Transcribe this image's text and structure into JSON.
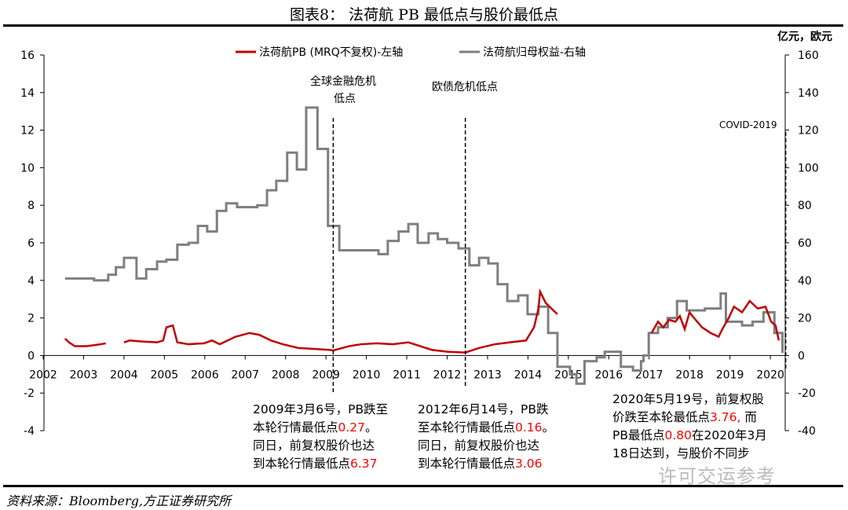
{
  "title": "图表8：  法荷航 PB 最低点与股价最低点",
  "source": "资料来源：Bloomberg,方正证券研究所",
  "right_unit": "亿元，欧元",
  "watermark": "许可交运参考",
  "notes": {
    "n2009": {
      "l1": "2009年3月6号，PB跌至",
      "l2a": "本轮行情最低点",
      "l2b": "0.27",
      "l2c": "。",
      "l3": "同日，前复权股价也达",
      "l4a": "到本轮行情最低点",
      "l4b": "6.37"
    },
    "n2012": {
      "l1": "2012年6月14号，PB跌",
      "l2a": "至本轮行情最低点",
      "l2b": "0.16",
      "l2c": "。",
      "l3": "同日，前复权股价也达",
      "l4a": "到本轮行情最低点",
      "l4b": "3.06"
    },
    "n2020": {
      "l1": "2020年5月19号，前复权股",
      "l2a": "价跌至本轮最低点",
      "l2b": "3.76,",
      "l2c": " 而",
      "l3a": "PB最低点",
      "l3b": "0.80",
      "l3c": "在2020年3月",
      "l4": "18日达到，与股价不同步"
    }
  },
  "chart_data": {
    "type": "line",
    "xlim": [
      2002,
      2020.5
    ],
    "x_ticks": [
      2002,
      2003,
      2004,
      2005,
      2006,
      2007,
      2008,
      2009,
      2010,
      2011,
      2012,
      2013,
      2014,
      2015,
      2016,
      2017,
      2018,
      2019,
      2020
    ],
    "y_left": {
      "lim": [
        -4,
        16
      ],
      "ticks": [
        -4,
        -2,
        0,
        2,
        4,
        6,
        8,
        10,
        12,
        14,
        16
      ]
    },
    "y_right": {
      "lim": [
        -40,
        160
      ],
      "ticks": [
        -40,
        -20,
        0,
        20,
        40,
        60,
        80,
        100,
        120,
        140,
        160
      ]
    },
    "legend_placement": "top-center",
    "grid": false,
    "series": [
      {
        "name": "法荷航PB (MRQ不复权)-左轴",
        "axis": "left",
        "color": "#c00000",
        "segments": [
          [
            [
              2002.54,
              0.9
            ],
            [
              2002.64,
              0.7
            ],
            [
              2002.78,
              0.5
            ],
            [
              2003.07,
              0.5
            ],
            [
              2003.26,
              0.55
            ],
            [
              2003.42,
              0.6
            ],
            [
              2003.55,
              0.65
            ]
          ],
          [
            [
              2004.0,
              0.7
            ],
            [
              2004.14,
              0.8
            ],
            [
              2004.43,
              0.75
            ],
            [
              2004.82,
              0.7
            ],
            [
              2004.97,
              0.8
            ],
            [
              2005.05,
              1.5
            ],
            [
              2005.21,
              1.6
            ],
            [
              2005.32,
              0.7
            ],
            [
              2005.6,
              0.6
            ],
            [
              2005.98,
              0.65
            ],
            [
              2006.18,
              0.8
            ],
            [
              2006.37,
              0.6
            ],
            [
              2006.76,
              1.0
            ],
            [
              2007.11,
              1.2
            ],
            [
              2007.35,
              1.1
            ],
            [
              2007.64,
              0.8
            ],
            [
              2007.93,
              0.6
            ],
            [
              2008.32,
              0.4
            ],
            [
              2008.71,
              0.35
            ],
            [
              2009.09,
              0.3
            ],
            [
              2009.18,
              0.27
            ],
            [
              2009.58,
              0.5
            ],
            [
              2009.87,
              0.6
            ],
            [
              2010.26,
              0.65
            ],
            [
              2010.65,
              0.6
            ],
            [
              2011.04,
              0.7
            ],
            [
              2011.33,
              0.5
            ],
            [
              2011.62,
              0.3
            ],
            [
              2012.01,
              0.2
            ],
            [
              2012.45,
              0.16
            ],
            [
              2012.79,
              0.4
            ],
            [
              2013.18,
              0.6
            ],
            [
              2013.56,
              0.7
            ],
            [
              2013.95,
              0.8
            ],
            [
              2014.15,
              1.5
            ],
            [
              2014.26,
              2.5
            ],
            [
              2014.3,
              3.4
            ],
            [
              2014.44,
              2.8
            ],
            [
              2014.63,
              2.4
            ],
            [
              2014.73,
              2.2
            ]
          ],
          [
            [
              2017.06,
              1.2
            ],
            [
              2017.22,
              1.8
            ],
            [
              2017.35,
              1.5
            ],
            [
              2017.49,
              1.9
            ],
            [
              2017.65,
              1.8
            ],
            [
              2017.76,
              2.1
            ],
            [
              2017.88,
              1.4
            ],
            [
              2018.0,
              2.3
            ],
            [
              2018.11,
              2.0
            ],
            [
              2018.31,
              1.5
            ],
            [
              2018.52,
              1.2
            ],
            [
              2018.72,
              1.0
            ],
            [
              2018.81,
              1.4
            ],
            [
              2018.97,
              2.0
            ],
            [
              2019.1,
              2.6
            ],
            [
              2019.3,
              2.3
            ],
            [
              2019.49,
              2.9
            ],
            [
              2019.69,
              2.5
            ],
            [
              2019.88,
              2.6
            ],
            [
              2020.02,
              1.8
            ],
            [
              2020.13,
              1.6
            ],
            [
              2020.21,
              0.8
            ]
          ]
        ]
      },
      {
        "name": "法荷航归母权益-右轴",
        "axis": "right",
        "color": "#7f7f7f",
        "step": true,
        "end": 2020.33,
        "values": [
          [
            2002.54,
            41
          ],
          [
            2003.26,
            40
          ],
          [
            2003.61,
            43
          ],
          [
            2003.8,
            47
          ],
          [
            2004.0,
            52
          ],
          [
            2004.31,
            41
          ],
          [
            2004.55,
            46
          ],
          [
            2004.82,
            50
          ],
          [
            2005.05,
            51
          ],
          [
            2005.32,
            59
          ],
          [
            2005.6,
            60
          ],
          [
            2005.83,
            69
          ],
          [
            2006.06,
            66
          ],
          [
            2006.3,
            77
          ],
          [
            2006.53,
            81
          ],
          [
            2006.8,
            79
          ],
          [
            2007.3,
            80
          ],
          [
            2007.54,
            88
          ],
          [
            2007.77,
            93
          ],
          [
            2008.04,
            108
          ],
          [
            2008.28,
            99
          ],
          [
            2008.51,
            132
          ],
          [
            2008.79,
            110
          ],
          [
            2009.05,
            69
          ],
          [
            2009.33,
            56
          ],
          [
            2010.3,
            54
          ],
          [
            2010.53,
            61
          ],
          [
            2010.8,
            66
          ],
          [
            2011.04,
            70
          ],
          [
            2011.27,
            60
          ],
          [
            2011.54,
            65
          ],
          [
            2011.77,
            62
          ],
          [
            2012.0,
            60
          ],
          [
            2012.28,
            57
          ],
          [
            2012.55,
            48
          ],
          [
            2012.79,
            52
          ],
          [
            2013.02,
            49
          ],
          [
            2013.25,
            38
          ],
          [
            2013.49,
            29
          ],
          [
            2013.76,
            32
          ],
          [
            2013.99,
            22
          ],
          [
            2014.26,
            26
          ],
          [
            2014.5,
            12
          ],
          [
            2014.73,
            -6
          ],
          [
            2015.04,
            -10
          ],
          [
            2015.2,
            -15
          ],
          [
            2015.4,
            -3
          ],
          [
            2015.7,
            -1
          ],
          [
            2015.9,
            2
          ],
          [
            2016.3,
            -6
          ],
          [
            2016.6,
            -8
          ],
          [
            2016.8,
            -3
          ],
          [
            2016.86,
            0
          ],
          [
            2016.99,
            12
          ],
          [
            2017.22,
            15
          ],
          [
            2017.46,
            20
          ],
          [
            2017.69,
            29
          ],
          [
            2017.93,
            24
          ],
          [
            2018.38,
            25
          ],
          [
            2018.77,
            33
          ],
          [
            2018.9,
            18
          ],
          [
            2019.3,
            16
          ],
          [
            2019.56,
            18
          ],
          [
            2019.83,
            23
          ],
          [
            2020.1,
            12
          ],
          [
            2020.3,
            2
          ]
        ]
      }
    ],
    "annotations": [
      {
        "x": 2009.18,
        "label": "全球金融危机\n低点",
        "l1": "全球金融危机",
        "l2": "低点"
      },
      {
        "x": 2012.45,
        "label": "欧债危机低点"
      },
      {
        "x": 2020.38,
        "label": "COVID-2019"
      }
    ]
  }
}
